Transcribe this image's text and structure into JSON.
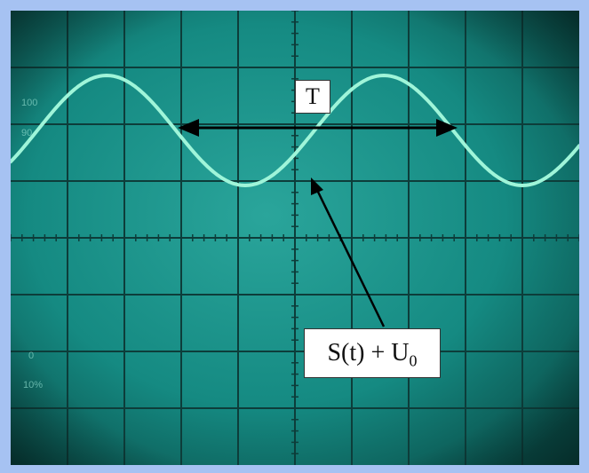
{
  "annotations": {
    "period_label": "T",
    "signal_label": "S(t) + U",
    "signal_label_subscript": "0"
  },
  "screen_markings": {
    "upper_marker": "100",
    "upper_marker_sub": "90",
    "lower_marker": "0",
    "lower_marker_sub": "10%"
  },
  "colors": {
    "frame": "#a6c2f2",
    "screen": "#12867f",
    "grid": "#0d3d3a",
    "trace": "#9ff5d9",
    "arrow": "#000000"
  },
  "trace": {
    "shape": "sine",
    "cycles_visible": 2.5
  }
}
